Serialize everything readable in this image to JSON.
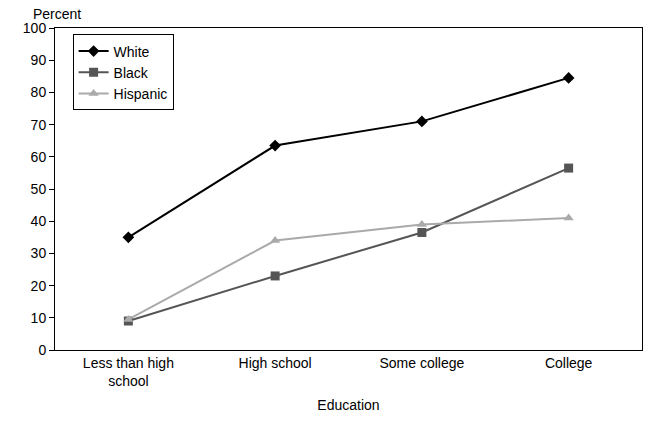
{
  "chart_data": {
    "type": "line",
    "x_label": "Education",
    "y_label": "Percent",
    "categories": [
      "Less than high school",
      "High school",
      "Some college",
      "College"
    ],
    "series": [
      {
        "name": "White",
        "color": "#000000",
        "marker": "diamond",
        "values": [
          35,
          63.5,
          71,
          84.5
        ]
      },
      {
        "name": "Black",
        "color": "#555555",
        "marker": "square",
        "values": [
          9,
          23,
          36.5,
          56.5
        ]
      },
      {
        "name": "Hispanic",
        "color": "#aaaaaa",
        "marker": "triangle-up",
        "values": [
          9.5,
          34,
          39,
          41
        ]
      }
    ],
    "ylim": [
      0,
      100
    ],
    "yticks": [
      0,
      10,
      20,
      30,
      40,
      50,
      60,
      70,
      80,
      90,
      100
    ],
    "grid": false,
    "legend": "upper left"
  }
}
